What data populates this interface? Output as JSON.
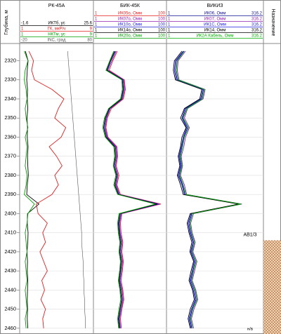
{
  "depth_track": {
    "label": "Глубина, м",
    "ylim": [
      2311,
      2463
    ],
    "yticks": [
      2320,
      2330,
      2340,
      2350,
      2360,
      2370,
      2380,
      2390,
      2400,
      2410,
      2420,
      2430,
      2440,
      2450,
      2460
    ],
    "depths": [
      2315,
      2320,
      2325,
      2330,
      2335,
      2340,
      2345,
      2350,
      2355,
      2360,
      2365,
      2370,
      2375,
      2380,
      2385,
      2390,
      2395,
      2400,
      2405,
      2410,
      2415,
      2420,
      2425,
      2430,
      2435,
      2440,
      2445,
      2450,
      2455,
      2460
    ]
  },
  "chart_data": [
    {
      "type": "line",
      "title": "РК-45А",
      "log": false,
      "series": [
        {
          "name": "ИКТб, ус",
          "color": "#000000",
          "xlim": [
            -1.6,
            25.6
          ],
          "values": [
            0.5,
            1.5,
            1.2,
            1.0,
            1.3,
            1.2,
            1.4,
            1.1,
            1.3,
            1.2,
            1.5,
            1.3,
            1.4,
            1.6,
            1.2,
            1.0,
            5.5,
            1.3,
            1.2,
            1.5,
            1.4,
            1.1,
            1.3,
            1.2,
            1.4,
            1.3,
            1.2,
            1.3,
            1.2,
            1.4
          ]
        },
        {
          "name": "ГК, мкР/ч",
          "color": "#e02020",
          "xlim": [
            1,
            9
          ],
          "values": [
            2.0,
            2.5,
            2.3,
            2.6,
            4.5,
            5.8,
            5.2,
            4.8,
            6.0,
            5.5,
            4.2,
            5.0,
            5.6,
            4.8,
            5.2,
            4.5,
            2.8,
            3.0,
            4.0,
            3.5,
            3.8,
            3.2,
            3.6,
            4.0,
            3.4,
            3.7,
            3.3,
            3.8,
            3.5,
            3.6
          ]
        },
        {
          "name": "НКТм, ус",
          "color": "#00a000",
          "xlim": [
            1,
            9
          ],
          "values": [
            1.5,
            1.9,
            1.6,
            1.5,
            1.7,
            1.8,
            1.6,
            1.7,
            1.9,
            1.6,
            1.8,
            1.7,
            1.6,
            1.8,
            1.7,
            1.5,
            2.6,
            1.9,
            1.8,
            1.6,
            1.7,
            1.8,
            1.6,
            1.7,
            1.8,
            1.6,
            1.7,
            1.8,
            1.6,
            1.7
          ]
        },
        {
          "name": "INC, град",
          "color": "#555555",
          "xlim": [
            -20,
            80
          ],
          "values": [
            45,
            46,
            47,
            48,
            49,
            50,
            51,
            52,
            53,
            54,
            55,
            56,
            57,
            58,
            59,
            60,
            61,
            62,
            63,
            64,
            64,
            65,
            66,
            66,
            67,
            67,
            68,
            68,
            69,
            69
          ]
        }
      ]
    },
    {
      "type": "line",
      "title": "БИК-45К",
      "log": true,
      "series": [
        {
          "name": "ИК05о, Омм",
          "color": "#e02020",
          "xlim": [
            1,
            100
          ],
          "values": [
            4.5,
            3.4,
            2.7,
            7.0,
            7.5,
            6.6,
            3.1,
            2.4,
            2.2,
            2.5,
            4.4,
            4.6,
            4.2,
            5.0,
            4.4,
            5.5,
            70,
            6.0,
            5.5,
            5.7,
            6.4,
            6.0,
            6.6,
            6.2,
            5.7,
            6.4,
            6.8,
            6.0,
            5.5,
            5.8
          ]
        },
        {
          "name": "ИК07о, Омм",
          "color": "#9020b0",
          "xlim": [
            1,
            100
          ],
          "values": [
            4.2,
            3.2,
            2.5,
            6.8,
            7.1,
            6.3,
            2.9,
            2.3,
            2.1,
            2.4,
            4.2,
            4.4,
            4.0,
            4.7,
            4.2,
            5.2,
            65,
            5.8,
            5.2,
            5.4,
            6.1,
            5.7,
            6.3,
            5.9,
            5.4,
            6.1,
            6.5,
            5.8,
            5.2,
            5.5
          ]
        },
        {
          "name": "ИК10о, Омм",
          "color": "#2020d0",
          "xlim": [
            1,
            100
          ],
          "values": [
            4.0,
            3.0,
            2.4,
            6.5,
            6.8,
            6.0,
            2.8,
            2.2,
            2.0,
            2.3,
            4.0,
            4.2,
            3.8,
            4.5,
            4.0,
            5.0,
            60,
            5.5,
            5.0,
            5.2,
            5.8,
            5.4,
            6.0,
            5.6,
            5.2,
            5.8,
            6.2,
            5.5,
            5.0,
            5.3
          ]
        },
        {
          "name": "ИК14о, Омм",
          "color": "#000000",
          "xlim": [
            1,
            100
          ],
          "values": [
            3.8,
            2.9,
            2.3,
            6.2,
            6.5,
            5.8,
            2.7,
            2.1,
            1.9,
            2.2,
            3.8,
            4.0,
            3.6,
            4.3,
            3.8,
            4.8,
            55,
            5.3,
            4.8,
            5.0,
            5.5,
            5.2,
            5.7,
            5.4,
            5.0,
            5.5,
            5.9,
            5.3,
            4.8,
            5.1
          ]
        },
        {
          "name": "ИК20о, Омм",
          "color": "#00a000",
          "xlim": [
            1,
            100
          ],
          "values": [
            3.6,
            2.8,
            2.2,
            6.0,
            6.2,
            5.5,
            2.6,
            2.0,
            1.8,
            2.1,
            3.6,
            3.8,
            3.5,
            4.1,
            3.6,
            4.6,
            50,
            5.0,
            4.6,
            4.8,
            5.3,
            5.0,
            5.5,
            5.2,
            4.8,
            5.3,
            5.6,
            5.0,
            4.6,
            4.9
          ]
        }
      ]
    },
    {
      "type": "line",
      "title": "ВИКИЗ",
      "log": true,
      "series": [
        {
          "name": "ИК06, Омм",
          "color": "#101090",
          "xlim": [
            1,
            316.2
          ],
          "values": [
            2.8,
            1.8,
            1.7,
            1.9,
            9.0,
            8.0,
            3.2,
            2.6,
            3.5,
            2.8,
            2.5,
            2.2,
            2.4,
            2.1,
            2.6,
            3.0,
            80,
            4.5,
            3.8,
            4.2,
            5.0,
            4.4,
            5.5,
            4.8,
            4.2,
            5.2,
            5.8,
            4.6,
            4.0,
            4.5
          ]
        },
        {
          "name": "ИК07, Омм",
          "color": "#9020b0",
          "xlim": [
            1,
            316.2
          ],
          "values": [
            3.1,
            2.0,
            1.9,
            2.1,
            9.9,
            8.8,
            3.5,
            2.9,
            3.9,
            3.1,
            2.8,
            2.4,
            2.6,
            2.3,
            2.9,
            3.3,
            88,
            5.0,
            4.2,
            4.6,
            5.5,
            4.8,
            6.1,
            5.3,
            4.6,
            5.7,
            6.4,
            5.1,
            4.4,
            5.0
          ]
        },
        {
          "name": "ИК1С, Омм",
          "color": "#2020e0",
          "xlim": [
            1,
            316.2
          ],
          "values": [
            2.7,
            1.7,
            1.6,
            1.8,
            8.6,
            7.6,
            3.0,
            2.5,
            3.3,
            2.7,
            2.4,
            2.1,
            2.3,
            2.0,
            2.5,
            2.9,
            76,
            4.3,
            3.6,
            4.0,
            4.8,
            4.2,
            5.2,
            4.6,
            4.0,
            4.9,
            5.5,
            4.4,
            3.8,
            4.3
          ]
        },
        {
          "name": "ИК14, Омм",
          "color": "#000000",
          "xlim": [
            1,
            316.2
          ],
          "values": [
            2.5,
            1.6,
            1.5,
            1.7,
            8.1,
            7.2,
            2.9,
            2.3,
            3.2,
            2.5,
            2.3,
            2.0,
            2.2,
            1.9,
            2.3,
            2.7,
            72,
            4.1,
            3.4,
            3.8,
            4.5,
            4.0,
            5.0,
            4.3,
            3.8,
            4.7,
            5.2,
            4.1,
            3.6,
            4.1
          ]
        },
        {
          "name": "ИК2А Кабель, Омм",
          "color": "#00b000",
          "xlim": [
            1,
            316.2
          ],
          "values": [
            2.9,
            1.9,
            1.8,
            2.0,
            9.5,
            8.4,
            3.4,
            2.7,
            3.7,
            2.9,
            2.6,
            2.3,
            2.5,
            2.2,
            2.7,
            3.2,
            84,
            4.7,
            4.0,
            4.4,
            5.3,
            4.6,
            5.8,
            5.0,
            4.4,
            5.5,
            6.1,
            4.8,
            4.2,
            4.7
          ]
        }
      ]
    }
  ],
  "remarks": {
    "header": "Назначение",
    "label": "АВ1/3",
    "interval": [
      2414,
      2463
    ]
  },
  "footer": "н/в"
}
